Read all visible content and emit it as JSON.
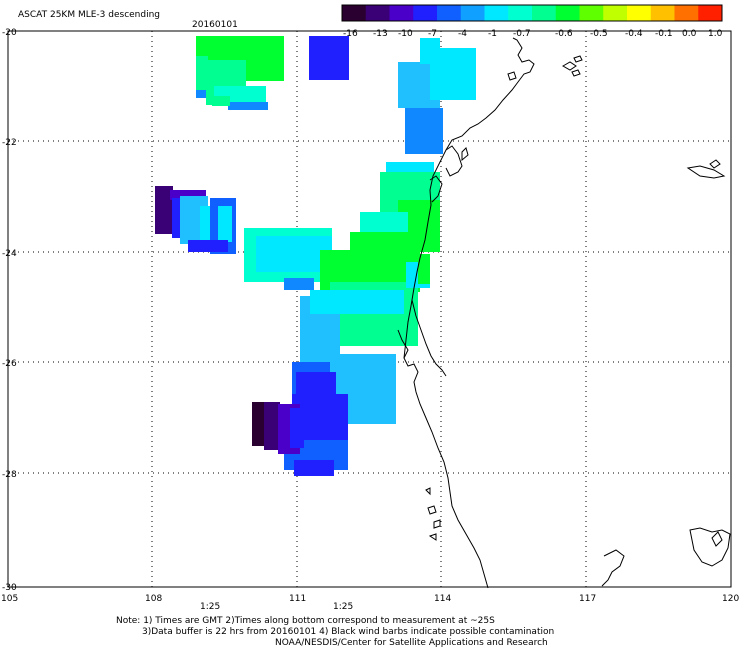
{
  "header": {
    "title": "ASCAT 25KM MLE-3 descending",
    "date": "20160101"
  },
  "colorbar": {
    "colors": [
      "#2a0030",
      "#3a0075",
      "#4a00c8",
      "#2020ff",
      "#1060ff",
      "#10a0ff",
      "#00e8ff",
      "#00ffd0",
      "#00ff90",
      "#00ff30",
      "#60ff00",
      "#c0ff00",
      "#ffff00",
      "#ffc000",
      "#ff7000",
      "#ff2000"
    ],
    "labels": [
      "-16",
      "-13",
      "-10",
      "-7",
      "-4",
      "-1",
      "-0.7",
      "-0.6",
      "-0.5",
      "-0.4",
      "-0.1",
      "0.0",
      "1.0"
    ]
  },
  "map": {
    "lat_labels": [
      "-20",
      "-22",
      "-24",
      "-26",
      "-28",
      "-30"
    ],
    "lon_labels": [
      "105",
      "108",
      "111",
      "114",
      "117",
      "120"
    ],
    "time_labels": [
      "1:25",
      "1:25"
    ],
    "time_label_color": "#cc2200",
    "coast_color": "#000000",
    "grid_color": "#000000"
  },
  "notes": {
    "line1": "Note: 1) Times are GMT 2)Times along bottom correspond to measurement at ~25S",
    "line2": "3)Data buffer is 22 hrs from 20160101 4) Black wind barbs indicate possible contamination",
    "line3": "NOAA/NESDIS/Center for Satellite Applications and Research"
  }
}
